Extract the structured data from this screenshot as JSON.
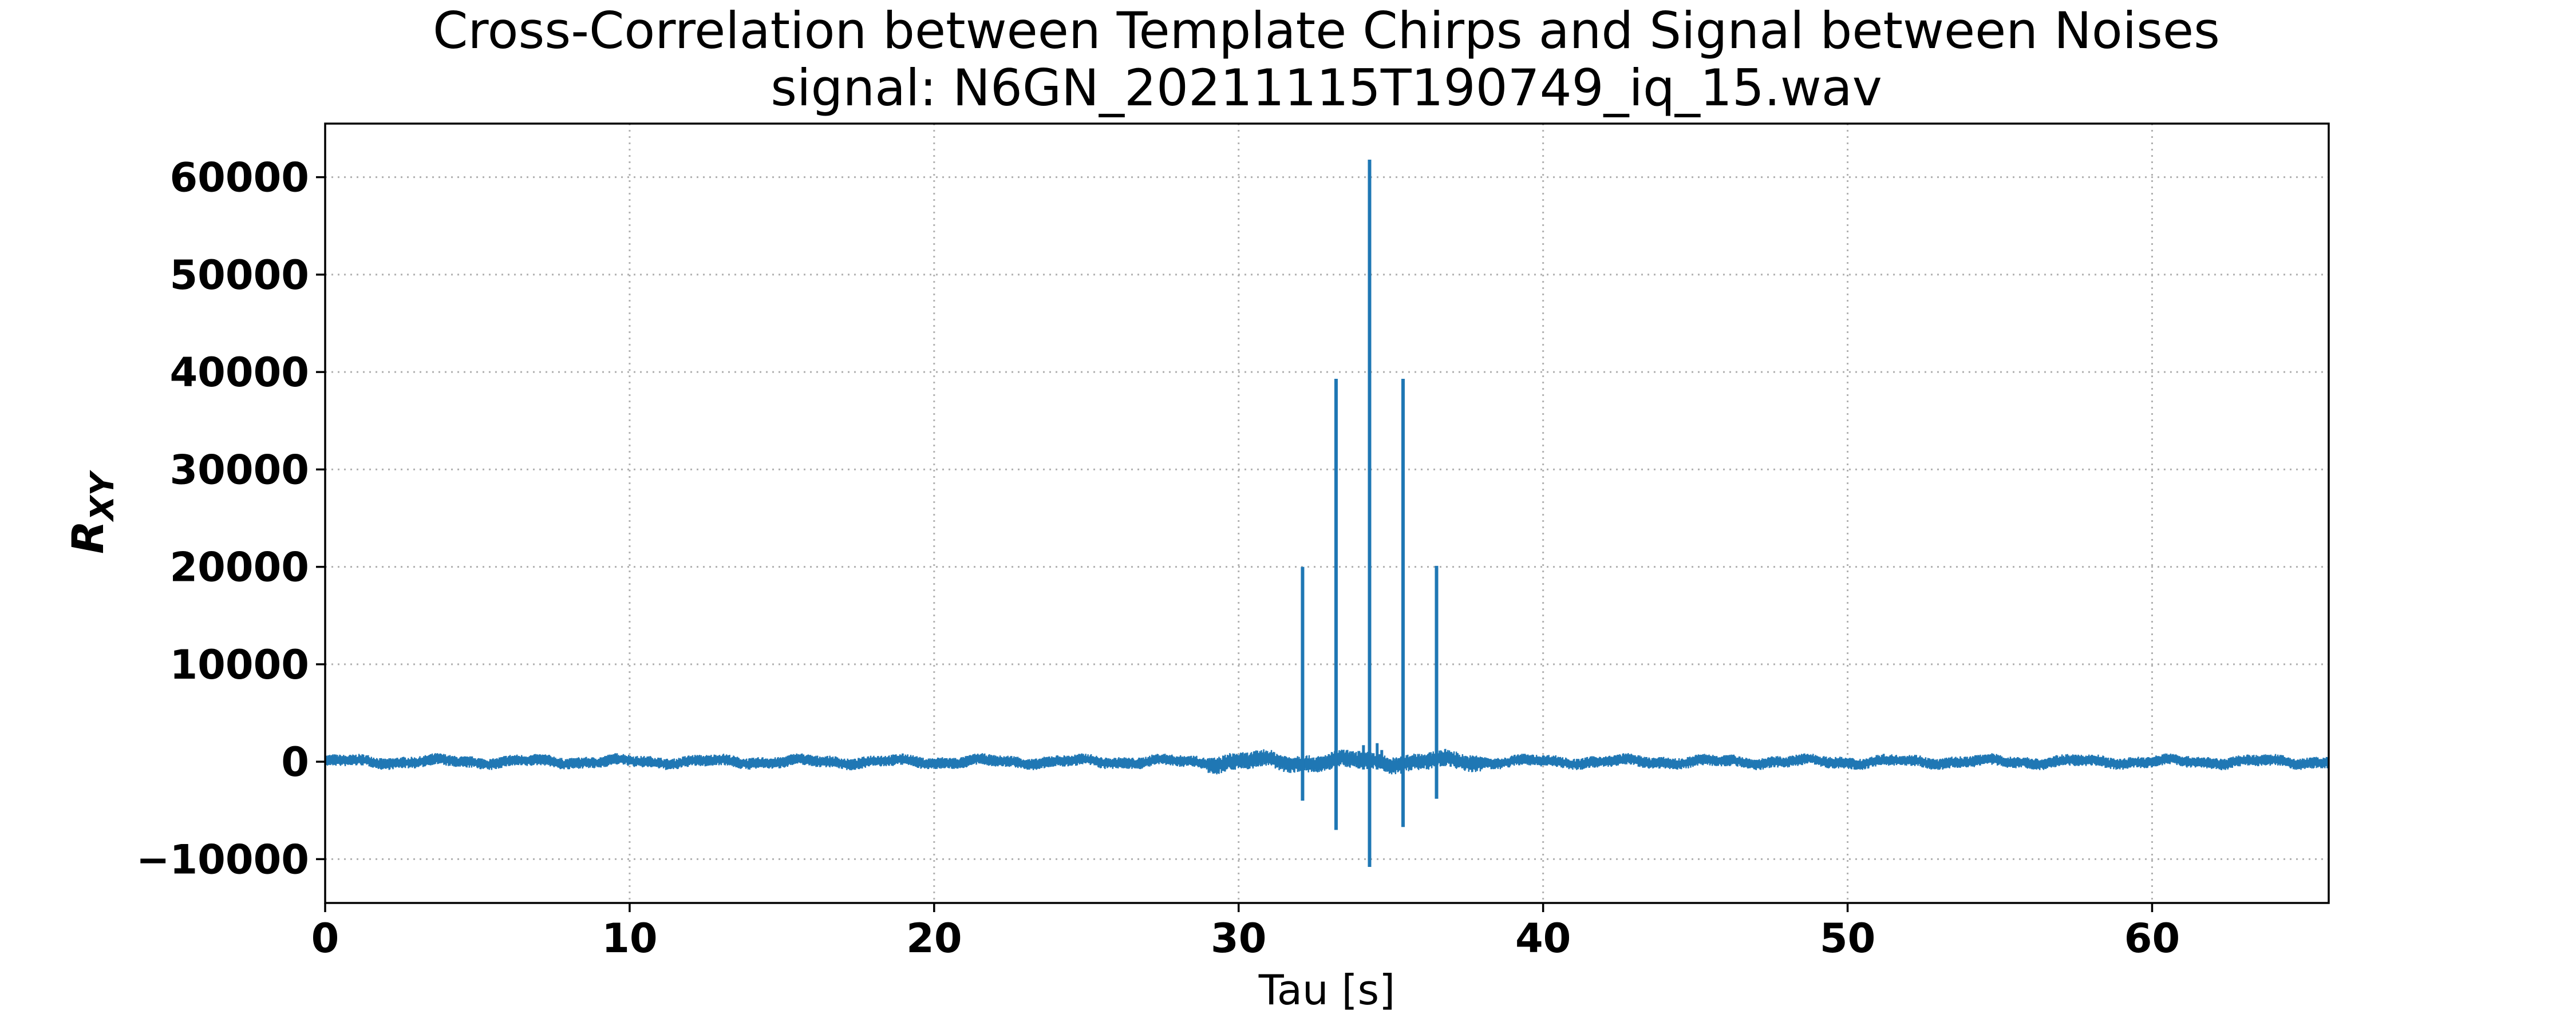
{
  "chart_data": {
    "type": "line",
    "title": "Cross-Correlation between Template Chirps and Signal between Noises",
    "subtitle": "signal: N6GN_20211115T190749_iq_15.wav",
    "xlabel": "Tau [s]",
    "ylabel_main": "R",
    "ylabel_sub": "XY",
    "xlim": [
      0,
      65.8
    ],
    "ylim": [
      -14500,
      65500
    ],
    "xticks": [
      0,
      10,
      20,
      30,
      40,
      50,
      60
    ],
    "yticks": [
      -10000,
      0,
      10000,
      20000,
      30000,
      40000,
      50000,
      60000
    ],
    "xtick_labels": [
      "0",
      "10",
      "20",
      "30",
      "40",
      "50",
      "60"
    ],
    "ytick_labels": [
      "−10000",
      "0",
      "10000",
      "20000",
      "30000",
      "40000",
      "50000",
      "60000"
    ],
    "grid": true,
    "line_color": "#1f77b4",
    "noise_floor": {
      "x_range": [
        0,
        65.8
      ],
      "typical_amplitude": 600,
      "elevated_region": [
        29,
        38
      ],
      "elevated_amplitude": 900
    },
    "spikes": [
      {
        "x": 32.1,
        "ymax": 20000,
        "ymin": -4000
      },
      {
        "x": 33.2,
        "ymax": 39300,
        "ymin": -7000
      },
      {
        "x": 34.3,
        "ymax": 61800,
        "ymin": -10800
      },
      {
        "x": 35.4,
        "ymax": 39300,
        "ymin": -6700
      },
      {
        "x": 36.5,
        "ymax": 20100,
        "ymin": -3800
      }
    ],
    "minor_peaks": [
      {
        "x": 33.95,
        "ymax": 1100,
        "ymin": -700
      },
      {
        "x": 34.1,
        "ymax": 1700,
        "ymin": -800
      },
      {
        "x": 34.55,
        "ymax": 1900,
        "ymin": -800
      },
      {
        "x": 34.7,
        "ymax": 1200,
        "ymin": -700
      }
    ]
  }
}
